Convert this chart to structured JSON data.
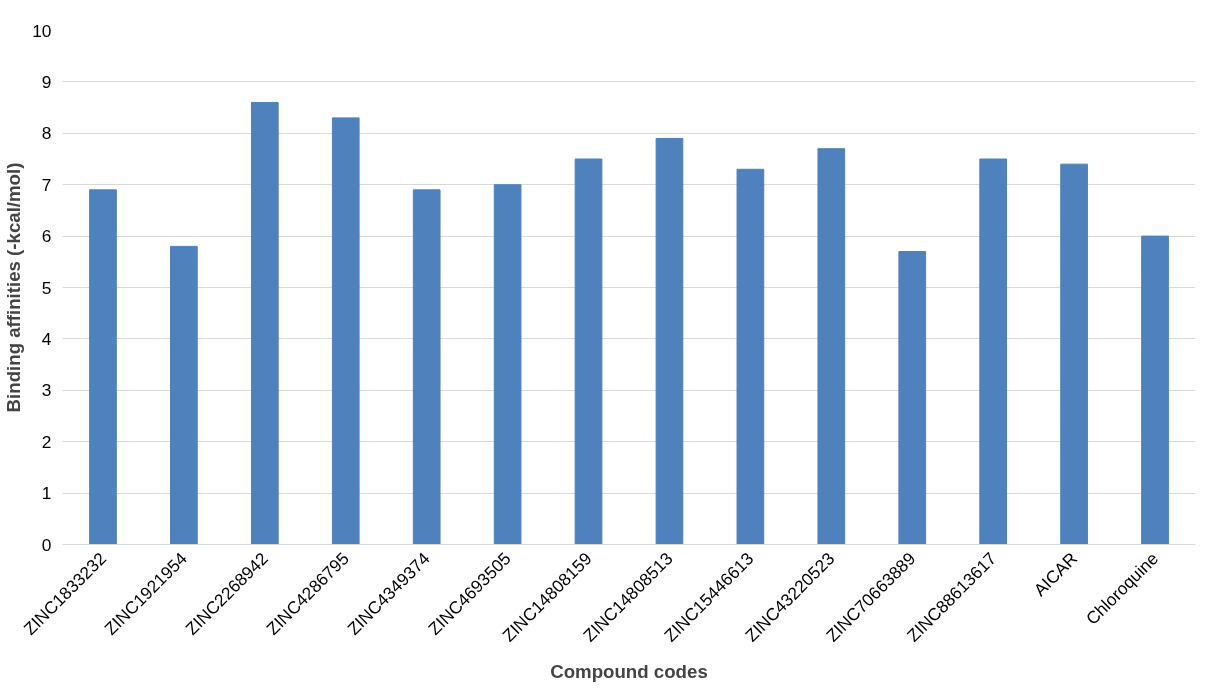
{
  "chart_data": {
    "type": "bar",
    "xlabel": "Compound codes",
    "ylabel": "Binding affinities (-kcal/mol)",
    "categories": [
      "ZINC1833232",
      "ZINC1921954",
      "ZINC2268942",
      "ZINC4286795",
      "ZINC4349374",
      "ZINC4693505",
      "ZINC14808159",
      "ZINC14808513",
      "ZINC15446613",
      "ZINC43220523",
      "ZINC70663889",
      "ZINC88613617",
      "AICAR",
      "Chloroquine"
    ],
    "values": [
      6.9,
      5.8,
      8.6,
      8.3,
      6.9,
      7.0,
      7.5,
      7.9,
      7.3,
      7.7,
      5.7,
      7.5,
      7.4,
      6.0
    ],
    "color": "#4f81bd",
    "ylim": [
      0,
      10
    ],
    "yticks": [
      0,
      1,
      2,
      3,
      4,
      5,
      6,
      7,
      8,
      9,
      10
    ],
    "grid": "y"
  }
}
